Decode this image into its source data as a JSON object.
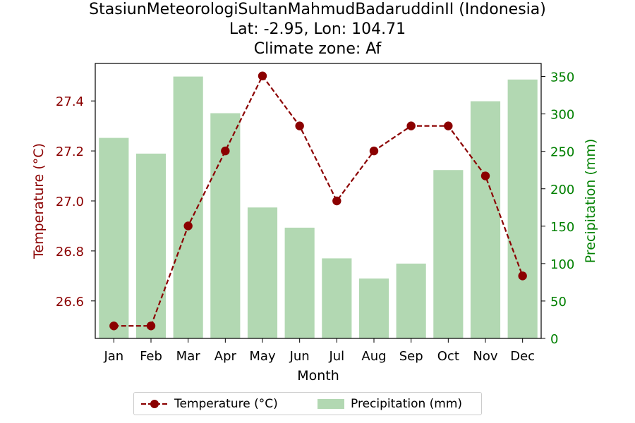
{
  "chart_data": {
    "type": "bar+line",
    "title": "StasiunMeteorologiSultanMahmudBadaruddinII (Indonesia)",
    "subtitle_lines": [
      "Lat: -2.95, Lon: 104.71",
      "Climate zone: Af"
    ],
    "xlabel": "Month",
    "ylabel_left": "Temperature (°C)",
    "ylabel_right": "Precipitation (mm)",
    "categories": [
      "Jan",
      "Feb",
      "Mar",
      "Apr",
      "May",
      "Jun",
      "Jul",
      "Aug",
      "Sep",
      "Oct",
      "Nov",
      "Dec"
    ],
    "series": [
      {
        "name": "Temperature (°C)",
        "type": "line",
        "axis": "left",
        "values": [
          26.5,
          26.5,
          26.9,
          27.2,
          27.5,
          27.3,
          27.0,
          27.2,
          27.3,
          27.3,
          27.1,
          26.7
        ],
        "color": "#8b0000",
        "style": "dashed",
        "marker": "circle"
      },
      {
        "name": "Precipitation (mm)",
        "type": "bar",
        "axis": "right",
        "values": [
          268,
          247,
          350,
          301,
          175,
          148,
          107,
          80,
          100,
          225,
          317,
          346
        ],
        "color": "#b2d8b2"
      }
    ],
    "ylim_left": [
      26.45,
      27.55
    ],
    "ylim_right": [
      0,
      367.5
    ],
    "yticks_left": [
      "26.6",
      "26.8",
      "27.0",
      "27.2",
      "27.4"
    ],
    "yticks_right": [
      "0",
      "50",
      "100",
      "150",
      "200",
      "250",
      "300",
      "350"
    ],
    "left_axis_color": "#8b0000",
    "right_axis_color": "#008000",
    "grid": false,
    "legend_position": "bottom-center"
  }
}
